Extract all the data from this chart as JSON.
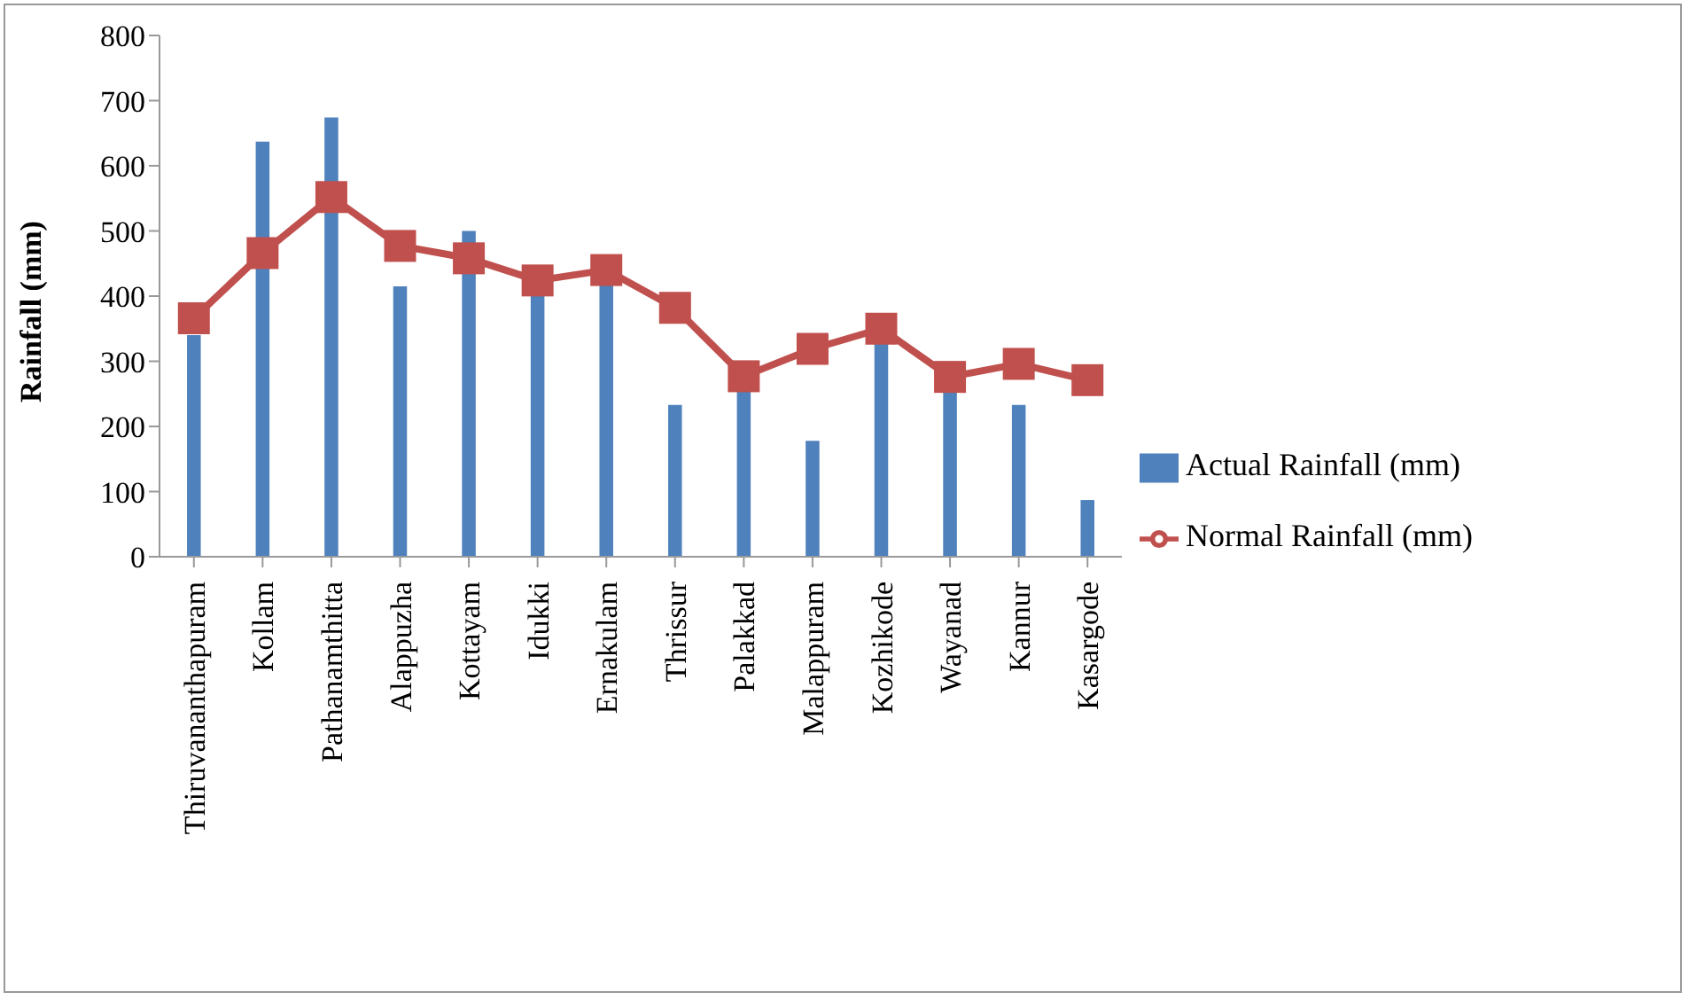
{
  "chart_data": {
    "type": "bar",
    "ylabel": "Rainfall (mm)",
    "categories": [
      "Thiruvananthapuram",
      "Kollam",
      "Pathanamthitta",
      "Alappuzha",
      "Kottayam",
      "Idukki",
      "Ernakulam",
      "Thrissur",
      "Palakkad",
      "Malappuram",
      "Kozhikode",
      "Wayanad",
      "Kannur",
      "Kasargode"
    ],
    "series": [
      {
        "name": "Actual Rainfall (mm)",
        "color": "#4f81bd",
        "values": [
          340,
          637,
          674,
          415,
          500,
          404,
          420,
          233,
          258,
          178,
          330,
          257,
          233,
          87
        ]
      },
      {
        "name": "Normal Rainfall (mm)",
        "type": "line",
        "color": "#c0504d",
        "marker": "square",
        "values": [
          366,
          466,
          552,
          477,
          458,
          424,
          440,
          382,
          277,
          319,
          350,
          276,
          296,
          271
        ]
      }
    ],
    "ylim": [
      0,
      800
    ],
    "yticks": [
      0,
      100,
      200,
      300,
      400,
      500,
      600,
      700,
      800
    ],
    "grid": false,
    "legend": "right"
  }
}
